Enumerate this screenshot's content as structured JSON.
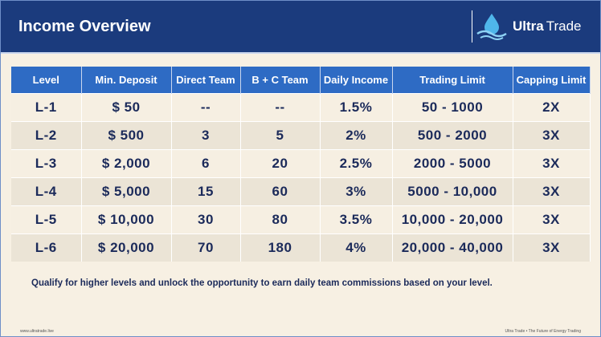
{
  "header": {
    "title": "Income Overview",
    "brand": [
      "Ultra",
      "Trade"
    ]
  },
  "table": {
    "columns": [
      "Level",
      "Min. Deposit",
      "Direct Team",
      "B + C Team",
      "Daily Income",
      "Trading Limit",
      "Capping Limit"
    ],
    "rows": [
      [
        "L-1",
        "$ 50",
        "--",
        "--",
        "1.5%",
        "50 - 1000",
        "2X"
      ],
      [
        "L-2",
        "$ 500",
        "3",
        "5",
        "2%",
        "500 - 2000",
        "3X"
      ],
      [
        "L-3",
        "$ 2,000",
        "6",
        "20",
        "2.5%",
        "2000 - 5000",
        "3X"
      ],
      [
        "L-4",
        "$ 5,000",
        "15",
        "60",
        "3%",
        "5000 - 10,000",
        "3X"
      ],
      [
        "L-5",
        "$ 10,000",
        "30",
        "80",
        "3.5%",
        "10,000 - 20,000",
        "3X"
      ],
      [
        "L-6",
        "$ 20,000",
        "70",
        "180",
        "4%",
        "20,000 - 40,000",
        "3X"
      ]
    ]
  },
  "note": "Qualify for higher levels and unlock the opportunity to earn daily team commissions based on your level.",
  "footer": {
    "left": "www.ultratrade.live",
    "right": "Ultra Trade • The Future of Energy Trading"
  }
}
